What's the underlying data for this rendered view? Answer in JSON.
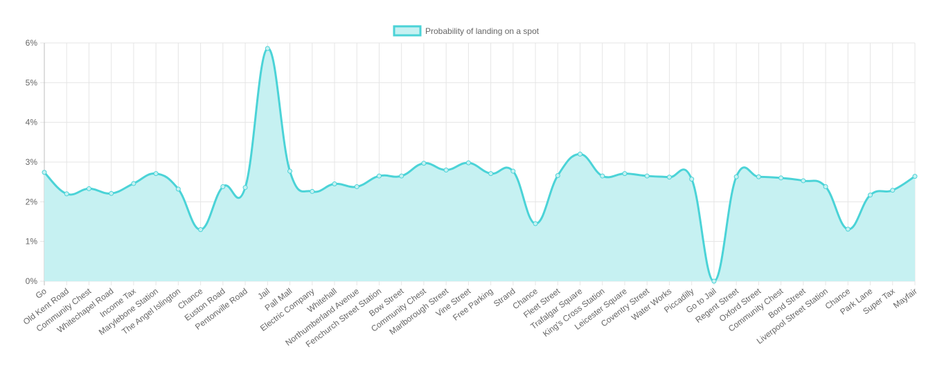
{
  "chart_data": {
    "type": "area",
    "categories": [
      "Go",
      "Old Kent Road",
      "Community Chest",
      "Whitechapel Road",
      "Income Tax",
      "Marylebone Station",
      "The Angel Islington",
      "Chance",
      "Euston Road",
      "Pentonville Road",
      "Jail",
      "Pall Mall",
      "Electric Company",
      "Whitehall",
      "Northumberland Avenue",
      "Fenchurch Street Station",
      "Bow Street",
      "Community Chest",
      "Marlborough Street",
      "Vine Street",
      "Free Parking",
      "Strand",
      "Chance",
      "Fleet Street",
      "Trafalgar Square",
      "King's Cross Station",
      "Leicester Square",
      "Coventry Street",
      "Water Works",
      "Piccadilly",
      "Go to Jail",
      "Regent Street",
      "Oxford Street",
      "Community Chest",
      "Bond Street",
      "Liverpool Street Station",
      "Chance",
      "Park Lane",
      "Super Tax",
      "Mayfair"
    ],
    "series": [
      {
        "name": "Probability of landing on a spot",
        "values": [
          2.74,
          2.2,
          2.33,
          2.21,
          2.46,
          2.71,
          2.32,
          1.3,
          2.38,
          2.36,
          5.86,
          2.77,
          2.26,
          2.45,
          2.38,
          2.65,
          2.65,
          2.97,
          2.8,
          2.98,
          2.71,
          2.77,
          1.45,
          2.66,
          3.2,
          2.65,
          2.71,
          2.65,
          2.62,
          2.57,
          0.0,
          2.63,
          2.63,
          2.6,
          2.53,
          2.38,
          1.31,
          2.17,
          2.29,
          2.64
        ]
      }
    ],
    "yticks": [
      "0%",
      "1%",
      "2%",
      "3%",
      "4%",
      "5%",
      "6%"
    ],
    "ylim": [
      0,
      6
    ],
    "grid": true,
    "legend_position": "top-center",
    "colors": {
      "line": "#4bd3d7",
      "fill": "#c6f1f2",
      "grid": "#e5e5e5",
      "axis": "#bdbdbd"
    }
  }
}
